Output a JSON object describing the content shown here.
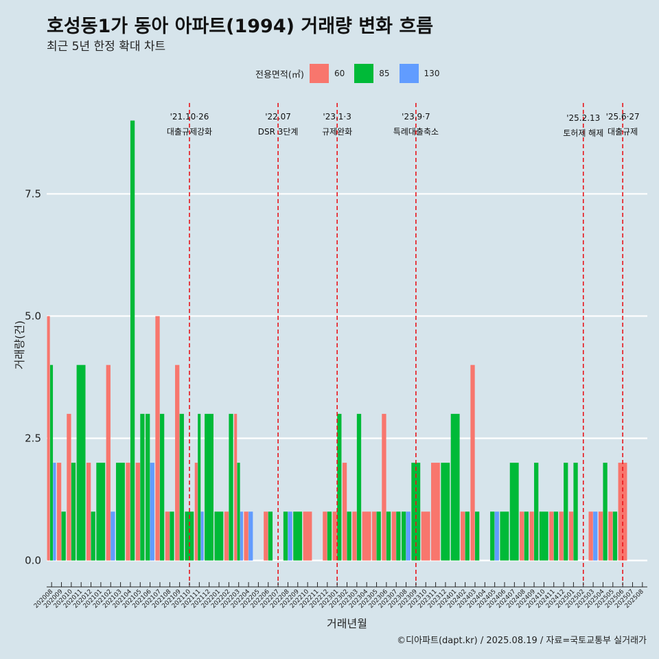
{
  "header": {
    "title": "호성동1가 동아 아파트(1994) 거래량 변화 흐름",
    "subtitle": "최근 5년 한정 확대 차트"
  },
  "caption": "©디아파트(dapt.kr) / 2025.08.19 / 자료=국토교통부 실거래가",
  "chart_data": {
    "type": "bar",
    "xlabel": "거래년월",
    "ylabel": "거래량(건)",
    "ylim": [
      -0.4,
      9.5
    ],
    "yticks": [
      0.0,
      2.5,
      5.0,
      7.5
    ],
    "ytick_labels": [
      "0.0",
      "2.5",
      "5.0",
      "7.5"
    ],
    "grid": "horizontal",
    "legend": {
      "title": "전용면적(㎡)",
      "position": "top",
      "entries": [
        {
          "name": "60",
          "color": "#f8766d"
        },
        {
          "name": "85",
          "color": "#00ba38"
        },
        {
          "name": "130",
          "color": "#619cff"
        }
      ]
    },
    "categories": [
      "202008",
      "202009",
      "202010",
      "202011",
      "202012",
      "202101",
      "202102",
      "202103",
      "202104",
      "202105",
      "202106",
      "202107",
      "202108",
      "202109",
      "202110",
      "202111",
      "202112",
      "202201",
      "202202",
      "202203",
      "202204",
      "202205",
      "202206",
      "202207",
      "202208",
      "202209",
      "202210",
      "202211",
      "202212",
      "202301",
      "202302",
      "202303",
      "202304",
      "202305",
      "202306",
      "202307",
      "202308",
      "202309",
      "202310",
      "202311",
      "202312",
      "202401",
      "202402",
      "202403",
      "202404",
      "202405",
      "202406",
      "202407",
      "202408",
      "202409",
      "202410",
      "202411",
      "202412",
      "202501",
      "202502",
      "202503",
      "202504",
      "202505",
      "202506",
      "202507",
      "202508"
    ],
    "bars": [
      {
        "month": "202008",
        "area": "60",
        "value": 5
      },
      {
        "month": "202008",
        "area": "85",
        "value": 4
      },
      {
        "month": "202008",
        "area": "130",
        "value": 2
      },
      {
        "month": "202009",
        "area": "60",
        "value": 2
      },
      {
        "month": "202009",
        "area": "85",
        "value": 1
      },
      {
        "month": "202010",
        "area": "60",
        "value": 3
      },
      {
        "month": "202010",
        "area": "85",
        "value": 2
      },
      {
        "month": "202011",
        "area": "85",
        "value": 4
      },
      {
        "month": "202012",
        "area": "60",
        "value": 2
      },
      {
        "month": "202012",
        "area": "85",
        "value": 1
      },
      {
        "month": "202101",
        "area": "85",
        "value": 2
      },
      {
        "month": "202102",
        "area": "60",
        "value": 4
      },
      {
        "month": "202102",
        "area": "130",
        "value": 1
      },
      {
        "month": "202103",
        "area": "85",
        "value": 2
      },
      {
        "month": "202104",
        "area": "60",
        "value": 2
      },
      {
        "month": "202104",
        "area": "85",
        "value": 9
      },
      {
        "month": "202105",
        "area": "60",
        "value": 2
      },
      {
        "month": "202105",
        "area": "85",
        "value": 3
      },
      {
        "month": "202106",
        "area": "85",
        "value": 3
      },
      {
        "month": "202106",
        "area": "130",
        "value": 2
      },
      {
        "month": "202107",
        "area": "60",
        "value": 5
      },
      {
        "month": "202107",
        "area": "85",
        "value": 3
      },
      {
        "month": "202108",
        "area": "60",
        "value": 1
      },
      {
        "month": "202108",
        "area": "85",
        "value": 1
      },
      {
        "month": "202109",
        "area": "60",
        "value": 4
      },
      {
        "month": "202109",
        "area": "85",
        "value": 3
      },
      {
        "month": "202110",
        "area": "85",
        "value": 1
      },
      {
        "month": "202111",
        "area": "60",
        "value": 2
      },
      {
        "month": "202111",
        "area": "85",
        "value": 3
      },
      {
        "month": "202111",
        "area": "130",
        "value": 1
      },
      {
        "month": "202112",
        "area": "85",
        "value": 3
      },
      {
        "month": "202201",
        "area": "85",
        "value": 1
      },
      {
        "month": "202202",
        "area": "60",
        "value": 1
      },
      {
        "month": "202202",
        "area": "85",
        "value": 3
      },
      {
        "month": "202203",
        "area": "60",
        "value": 3
      },
      {
        "month": "202203",
        "area": "85",
        "value": 2
      },
      {
        "month": "202203",
        "area": "130",
        "value": 1
      },
      {
        "month": "202204",
        "area": "60",
        "value": 1
      },
      {
        "month": "202204",
        "area": "130",
        "value": 1
      },
      {
        "month": "202206",
        "area": "60",
        "value": 1
      },
      {
        "month": "202206",
        "area": "85",
        "value": 1
      },
      {
        "month": "202208",
        "area": "85",
        "value": 1
      },
      {
        "month": "202208",
        "area": "130",
        "value": 1
      },
      {
        "month": "202209",
        "area": "85",
        "value": 1
      },
      {
        "month": "202210",
        "area": "60",
        "value": 1
      },
      {
        "month": "202212",
        "area": "60",
        "value": 1
      },
      {
        "month": "202212",
        "area": "85",
        "value": 1
      },
      {
        "month": "202301",
        "area": "60",
        "value": 1
      },
      {
        "month": "202301",
        "area": "85",
        "value": 3
      },
      {
        "month": "202302",
        "area": "60",
        "value": 2
      },
      {
        "month": "202302",
        "area": "85",
        "value": 1
      },
      {
        "month": "202303",
        "area": "60",
        "value": 1
      },
      {
        "month": "202303",
        "area": "85",
        "value": 3
      },
      {
        "month": "202304",
        "area": "60",
        "value": 1
      },
      {
        "month": "202305",
        "area": "60",
        "value": 1
      },
      {
        "month": "202305",
        "area": "85",
        "value": 1
      },
      {
        "month": "202306",
        "area": "60",
        "value": 3
      },
      {
        "month": "202306",
        "area": "85",
        "value": 1
      },
      {
        "month": "202307",
        "area": "60",
        "value": 1
      },
      {
        "month": "202307",
        "area": "85",
        "value": 1
      },
      {
        "month": "202308",
        "area": "85",
        "value": 1
      },
      {
        "month": "202308",
        "area": "130",
        "value": 1
      },
      {
        "month": "202309",
        "area": "85",
        "value": 2
      },
      {
        "month": "202310",
        "area": "60",
        "value": 1
      },
      {
        "month": "202311",
        "area": "60",
        "value": 2
      },
      {
        "month": "202312",
        "area": "85",
        "value": 2
      },
      {
        "month": "202401",
        "area": "85",
        "value": 3
      },
      {
        "month": "202402",
        "area": "60",
        "value": 1
      },
      {
        "month": "202402",
        "area": "85",
        "value": 1
      },
      {
        "month": "202403",
        "area": "60",
        "value": 4
      },
      {
        "month": "202403",
        "area": "85",
        "value": 1
      },
      {
        "month": "202405",
        "area": "85",
        "value": 1
      },
      {
        "month": "202405",
        "area": "130",
        "value": 1
      },
      {
        "month": "202406",
        "area": "85",
        "value": 1
      },
      {
        "month": "202407",
        "area": "85",
        "value": 2
      },
      {
        "month": "202408",
        "area": "60",
        "value": 1
      },
      {
        "month": "202408",
        "area": "85",
        "value": 1
      },
      {
        "month": "202409",
        "area": "60",
        "value": 1
      },
      {
        "month": "202409",
        "area": "85",
        "value": 2
      },
      {
        "month": "202410",
        "area": "85",
        "value": 1
      },
      {
        "month": "202411",
        "area": "60",
        "value": 1
      },
      {
        "month": "202411",
        "area": "85",
        "value": 1
      },
      {
        "month": "202412",
        "area": "60",
        "value": 1
      },
      {
        "month": "202412",
        "area": "85",
        "value": 2
      },
      {
        "month": "202501",
        "area": "60",
        "value": 1
      },
      {
        "month": "202501",
        "area": "85",
        "value": 2
      },
      {
        "month": "202503",
        "area": "60",
        "value": 1
      },
      {
        "month": "202503",
        "area": "130",
        "value": 1
      },
      {
        "month": "202504",
        "area": "60",
        "value": 1
      },
      {
        "month": "202504",
        "area": "85",
        "value": 2
      },
      {
        "month": "202505",
        "area": "60",
        "value": 1
      },
      {
        "month": "202505",
        "area": "85",
        "value": 1
      },
      {
        "month": "202506",
        "area": "60",
        "value": 2
      }
    ],
    "events": [
      {
        "month": "202110",
        "date": "'21.10·26",
        "label": "대출규제강화",
        "tier": 0
      },
      {
        "month": "202207",
        "date": "'22.07",
        "label": "DSR 3단계",
        "tier": 0
      },
      {
        "month": "202301",
        "date": "'23.1·3",
        "label": "규제완화",
        "tier": 0
      },
      {
        "month": "202309",
        "date": "'23.9·7",
        "label": "특례대출축소",
        "tier": 0
      },
      {
        "month": "202502",
        "date": "'25.2.13",
        "label": "토허제 해제",
        "tier": 1
      },
      {
        "month": "202506",
        "date": "'25.6·27",
        "label": "대출규제",
        "tier": 0
      }
    ]
  }
}
